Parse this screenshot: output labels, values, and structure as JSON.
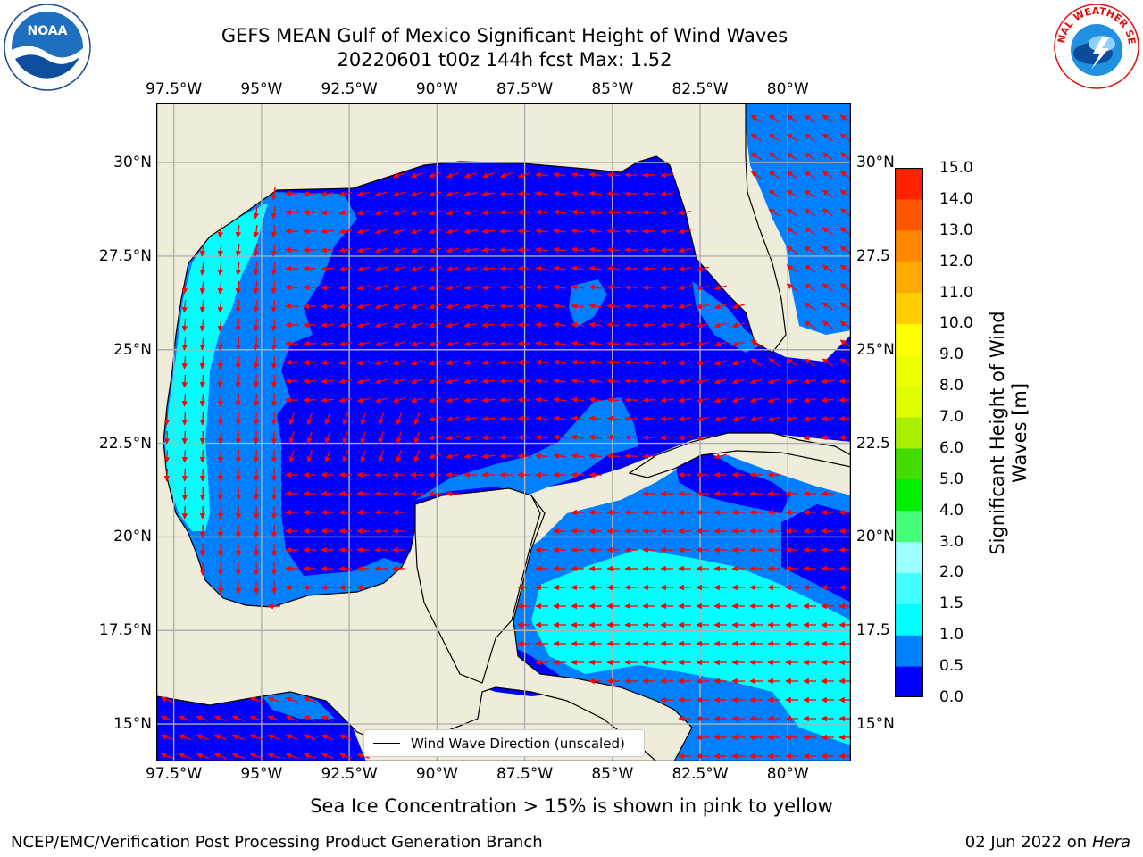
{
  "title_line1": "GEFS MEAN Gulf of Mexico Significant Height of Wind Waves",
  "title_line2": "20220601 t00z 144h fcst   Max: 1.52",
  "lon_ticks": [
    {
      "label": "97.5°W",
      "lon": -97.5
    },
    {
      "label": "95°W",
      "lon": -95
    },
    {
      "label": "92.5°W",
      "lon": -92.5
    },
    {
      "label": "90°W",
      "lon": -90
    },
    {
      "label": "87.5°W",
      "lon": -87.5
    },
    {
      "label": "85°W",
      "lon": -85
    },
    {
      "label": "82.5°W",
      "lon": -82.5
    },
    {
      "label": "80°W",
      "lon": -80
    }
  ],
  "lat_ticks_left": [
    {
      "label": "30°N",
      "lat": 30
    },
    {
      "label": "27.5°N",
      "lat": 27.5
    },
    {
      "label": "25°N",
      "lat": 25
    },
    {
      "label": "22.5°N",
      "lat": 22.5
    },
    {
      "label": "20°N",
      "lat": 20
    },
    {
      "label": "17.5°N",
      "lat": 17.5
    },
    {
      "label": "15°N",
      "lat": 15
    }
  ],
  "lat_ticks_right": [
    {
      "label": "30°N",
      "lat": 30
    },
    {
      "label": "27.5",
      "lat": 27.5
    },
    {
      "label": "25°N",
      "lat": 25
    },
    {
      "label": "22.5",
      "lat": 22.5
    },
    {
      "label": "20°N",
      "lat": 20
    },
    {
      "label": "17.5",
      "lat": 17.5
    },
    {
      "label": "15°N",
      "lat": 15
    }
  ],
  "colorbar": {
    "label_line1": "Significant Height of Wind",
    "label_line2": "Waves [m]",
    "levels": [
      {
        "value": "0.0",
        "color": "#0000ff"
      },
      {
        "value": "0.5",
        "color": "#0080ff"
      },
      {
        "value": "1.0",
        "color": "#00ffff"
      },
      {
        "value": "1.5",
        "color": "#44ffff"
      },
      {
        "value": "2.0",
        "color": "#99ffff"
      },
      {
        "value": "3.0",
        "color": "#44ff77"
      },
      {
        "value": "4.0",
        "color": "#00ee00"
      },
      {
        "value": "5.0",
        "color": "#44dd00"
      },
      {
        "value": "6.0",
        "color": "#aaee00"
      },
      {
        "value": "7.0",
        "color": "#ddff00"
      },
      {
        "value": "8.0",
        "color": "#eeff00"
      },
      {
        "value": "9.0",
        "color": "#ffff00"
      },
      {
        "value": "10.0",
        "color": "#ffcc00"
      },
      {
        "value": "11.0",
        "color": "#ffaa00"
      },
      {
        "value": "12.0",
        "color": "#ff8800"
      },
      {
        "value": "13.0",
        "color": "#ff5500"
      },
      {
        "value": "14.0",
        "color": "#ff2200"
      },
      {
        "value": "15.0",
        "color": ""
      }
    ]
  },
  "legend_text": "Wind Wave Direction (unscaled)",
  "sea_ice_note": "Sea Ice Concentration > 15% is shown in pink to yellow",
  "footer_left": "NCEP/EMC/Verification Post Processing Product Generation Branch",
  "footer_date": "02 Jun 2022 on",
  "footer_host": "Hera",
  "logo_left_text": "NOAA",
  "logo_right_text": "NATIONAL WEATHER SERVICE",
  "colors": {
    "land": "#efedd9",
    "arrow": "#ff0000",
    "grid": "#b0b0b0",
    "coast": "#000000"
  }
}
